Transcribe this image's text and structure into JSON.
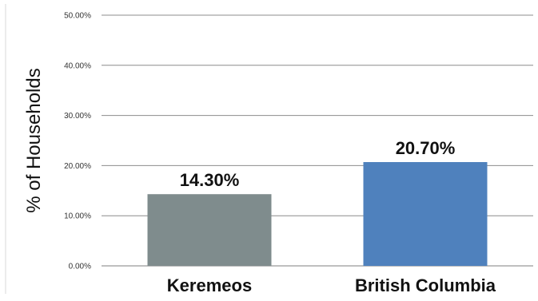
{
  "chart_data": {
    "type": "bar",
    "categories": [
      "Keremeos",
      "British Columbia"
    ],
    "values": [
      14.3,
      20.7
    ],
    "data_labels": [
      "14.30%",
      "20.70%"
    ],
    "bar_colors": [
      "#7f8c8d",
      "#4f81bd"
    ],
    "ylabel": "% of Households",
    "ylim": [
      0,
      50
    ],
    "yticks": [
      0,
      10,
      20,
      30,
      40,
      50
    ],
    "ytick_labels": [
      "0.00%",
      "10.00%",
      "20.00%",
      "30.00%",
      "40.00%",
      "50.00%"
    ],
    "grid": true,
    "legend": "none"
  }
}
